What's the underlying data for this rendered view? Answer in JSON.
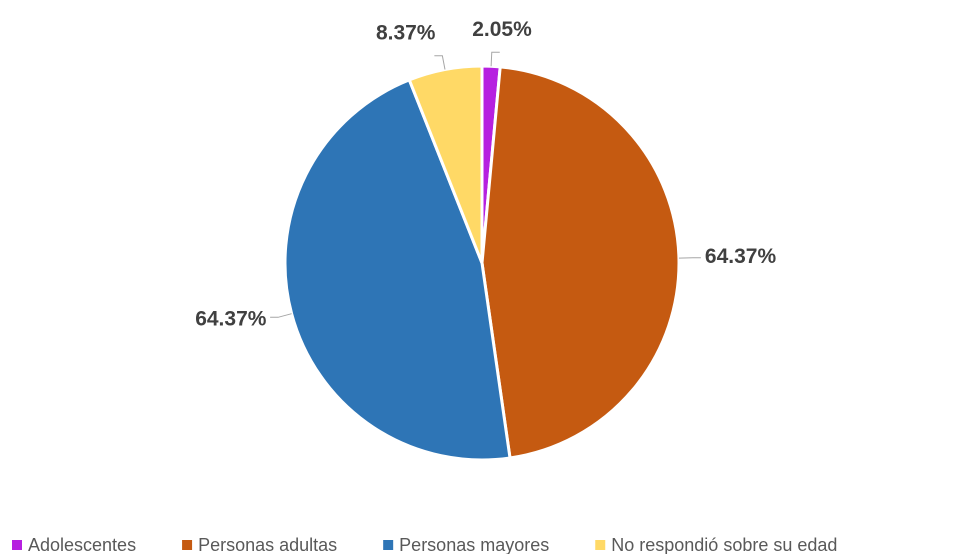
{
  "chart_data": {
    "type": "pie",
    "categories": [
      "Adolescentes",
      "Personas adultas",
      "Personas mayores",
      "No respondió sobre su edad"
    ],
    "values": [
      2.05,
      64.37,
      64.37,
      8.37
    ],
    "value_labels": [
      "2.05%",
      "64.37%",
      "64.37%",
      "8.37%"
    ],
    "colors": [
      "#b620e0",
      "#c55a11",
      "#2e75b6",
      "#ffd966"
    ],
    "legend": "bottom"
  }
}
